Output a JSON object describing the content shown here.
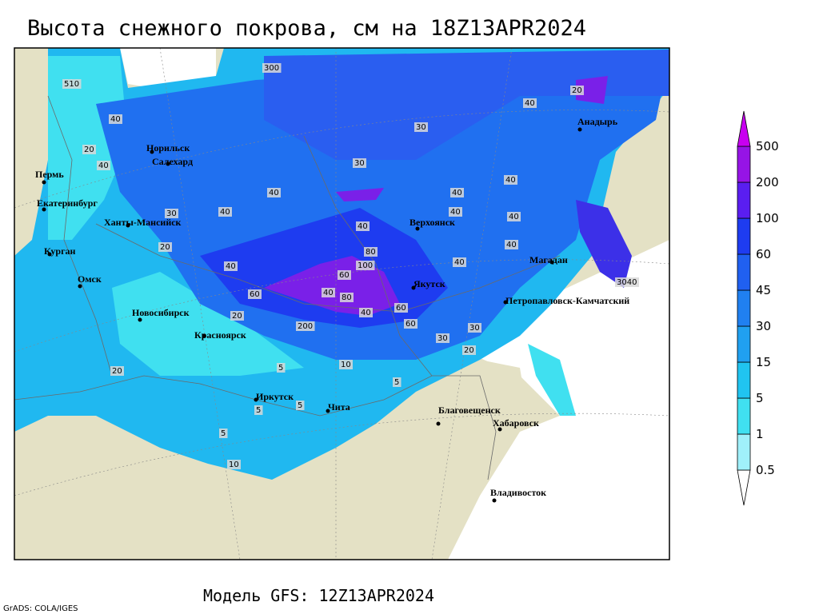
{
  "title": "Высота снежного покрова, см на 18Z13APR2024",
  "footer": "Модель GFS: 12Z13APR2024",
  "credit": "GrADS: COLA/IGES",
  "legend": {
    "levels": [
      0.5,
      1,
      5,
      15,
      30,
      45,
      60,
      100,
      200,
      500
    ],
    "colors": [
      "#ffffff",
      "#a0f0fa",
      "#40e0f0",
      "#20c4f0",
      "#20a0f0",
      "#2080f0",
      "#2060f0",
      "#1e3cf0",
      "#5a1ef0",
      "#9614e6",
      "#c800f0"
    ]
  },
  "cities": [
    "Пермь",
    "Екатеринбург",
    "Ханты-Мансийск",
    "Курган",
    "Омск",
    "Новосибирск",
    "Красноярск",
    "Иркутск",
    "Чита",
    "Норильск",
    "Салехард",
    "Верхоянск",
    "Якутск",
    "Магадан",
    "Анадырь",
    "Петропавловск-Камчатский",
    "Благовещенск",
    "Хабаровск",
    "Владивосток"
  ],
  "contour_labels": [
    "510",
    "20",
    "40",
    "20",
    "40",
    "30",
    "40",
    "20",
    "40",
    "40",
    "40",
    "40",
    "30",
    "30",
    "40",
    "40",
    "40",
    "40",
    "40",
    "80",
    "100",
    "60",
    "80",
    "60",
    "40",
    "60",
    "60",
    "40",
    "200",
    "30",
    "30",
    "20",
    "10",
    "5",
    "5",
    "5",
    "5",
    "10",
    "5",
    "20",
    "3040",
    "40",
    "20",
    "300"
  ]
}
